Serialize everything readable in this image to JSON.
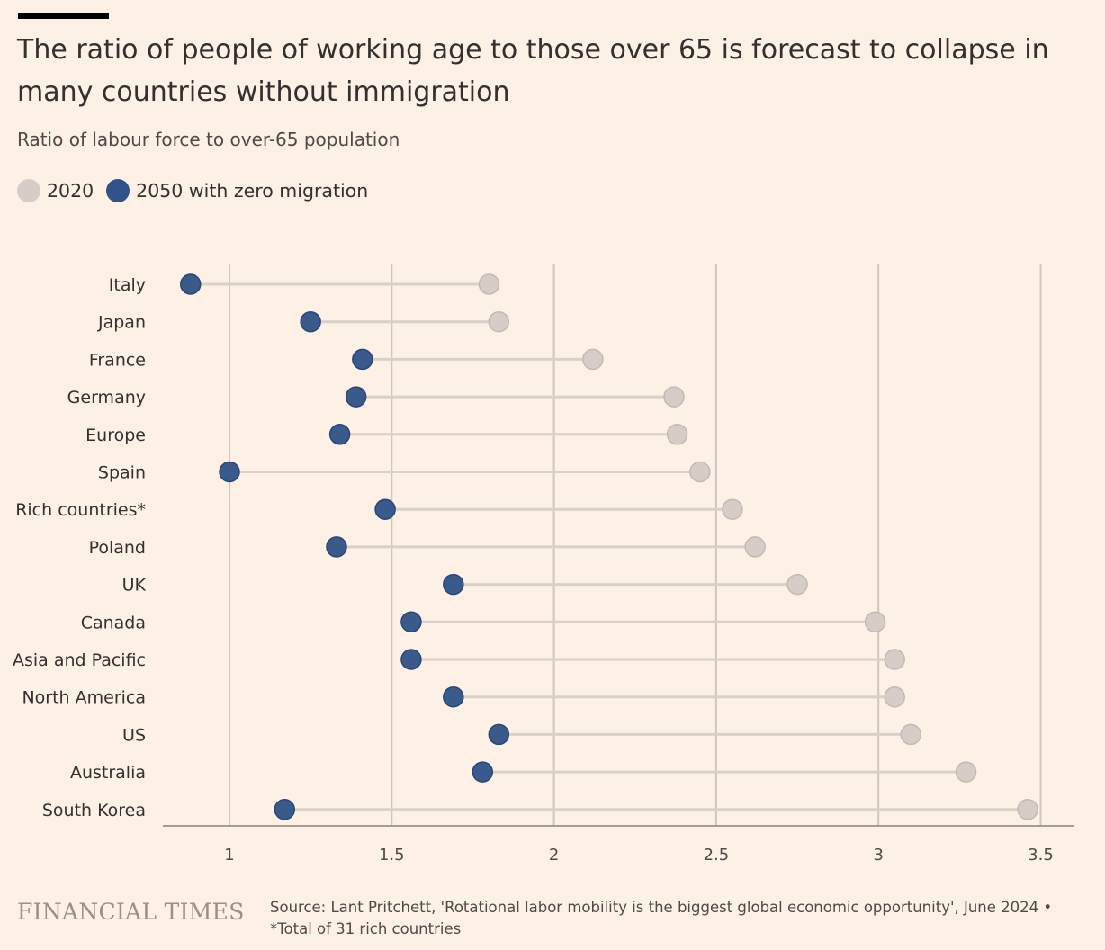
{
  "header": {
    "title": "The ratio of people of working age to those over 65 is forecast to collapse in many countries without immigration",
    "subtitle": "Ratio of labour force to over-65 population"
  },
  "legend": {
    "items": [
      {
        "label": "2020",
        "color": "#d6cec6"
      },
      {
        "label": "2050 with zero migration",
        "color": "#3a5a8c"
      }
    ]
  },
  "chart_data": {
    "type": "scatter",
    "subtype": "dumbbell",
    "categories": [
      "Italy",
      "Japan",
      "France",
      "Germany",
      "Europe",
      "Spain",
      "Rich countries*",
      "Poland",
      "UK",
      "Canada",
      "Asia and Pacific",
      "North America",
      "US",
      "Australia",
      "South Korea"
    ],
    "series": [
      {
        "name": "2020",
        "values": [
          1.8,
          1.83,
          2.12,
          2.37,
          2.38,
          2.45,
          2.55,
          2.62,
          2.75,
          2.99,
          3.05,
          3.05,
          3.1,
          3.27,
          3.46
        ]
      },
      {
        "name": "2050 with zero migration",
        "values": [
          0.88,
          1.25,
          1.41,
          1.39,
          1.34,
          1.0,
          1.48,
          1.33,
          1.69,
          1.56,
          1.56,
          1.69,
          1.83,
          1.78,
          1.17
        ]
      }
    ],
    "xticks": [
      "1",
      "1.5",
      "2",
      "2.5",
      "3",
      "3.5"
    ],
    "xlim": [
      0.8,
      3.6
    ],
    "grid": true,
    "legend_position": "top-left",
    "colors": {
      "2020": "#d6cec6",
      "2050": "#3a5a8c",
      "grid": "#cfc6bd",
      "connector": "#d9d0c8",
      "axis": "#8a817b"
    }
  },
  "footer": {
    "logo": "FINANCIAL TIMES",
    "source_line1": "Source: Lant Pritchett, 'Rotational labor mobility is the biggest global economic opportunity', June 2024 •",
    "source_line2": "*Total of 31 rich countries"
  }
}
